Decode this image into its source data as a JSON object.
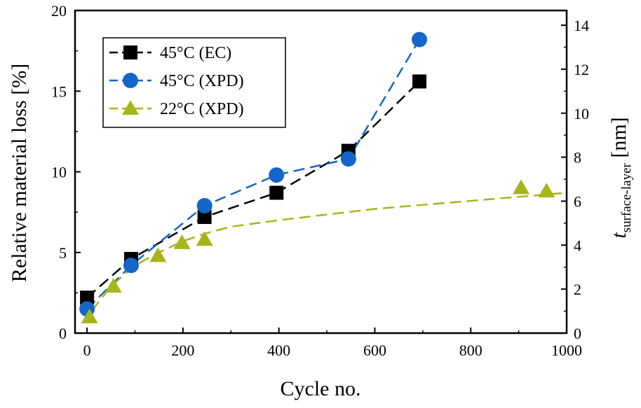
{
  "chart_data": {
    "type": "line",
    "title": "",
    "xlabel": "Cycle no.",
    "ylabel": "Relative material loss [%]",
    "y2label_main": "t",
    "y2label_sub": "surface-layer",
    "y2label_unit": " [nm]",
    "xlim": [
      -25,
      1000
    ],
    "ylim": [
      0,
      20
    ],
    "y2lim": [
      0,
      14.67
    ],
    "x_ticks": [
      0,
      200,
      400,
      600,
      800,
      1000
    ],
    "y_ticks": [
      0,
      5,
      10,
      15,
      20
    ],
    "y2_ticks": [
      0,
      2,
      4,
      6,
      8,
      10,
      12,
      14
    ],
    "grid": false,
    "legend_position": "top-left",
    "series": [
      {
        "name": "45°C (EC)",
        "marker": "square",
        "color": "#000000",
        "line_color": "#000000",
        "line_style": "dashed",
        "points": [
          [
            0,
            2.2
          ],
          [
            92,
            4.6
          ],
          [
            245,
            7.2
          ],
          [
            395,
            8.7
          ],
          [
            545,
            11.3
          ],
          [
            693,
            15.6
          ]
        ]
      },
      {
        "name": "45°C (XPD)",
        "marker": "circle",
        "color": "#1466c8",
        "line_color": "#1466c8",
        "line_style": "dashed",
        "points": [
          [
            0,
            1.5
          ],
          [
            92,
            4.2
          ],
          [
            245,
            7.9
          ],
          [
            395,
            9.8
          ],
          [
            545,
            10.8
          ],
          [
            693,
            18.2
          ]
        ]
      },
      {
        "name": "22°C (XPD)",
        "marker": "triangle",
        "color": "#a6b51a",
        "line_color": "#a6b51a",
        "line_style": "dashed",
        "fit_curve": [
          [
            10,
            1.4
          ],
          [
            50,
            2.9
          ],
          [
            100,
            4.2
          ],
          [
            150,
            5.0
          ],
          [
            200,
            5.7
          ],
          [
            250,
            6.2
          ],
          [
            300,
            6.6
          ],
          [
            400,
            7.0
          ],
          [
            500,
            7.35
          ],
          [
            600,
            7.7
          ],
          [
            700,
            7.95
          ],
          [
            800,
            8.2
          ],
          [
            900,
            8.45
          ],
          [
            1000,
            8.7
          ]
        ],
        "points": [
          [
            5,
            1.0
          ],
          [
            55,
            2.9
          ],
          [
            148,
            4.8
          ],
          [
            198,
            5.6
          ],
          [
            245,
            5.8
          ],
          [
            905,
            9.0
          ],
          [
            958,
            8.8
          ]
        ]
      }
    ]
  }
}
